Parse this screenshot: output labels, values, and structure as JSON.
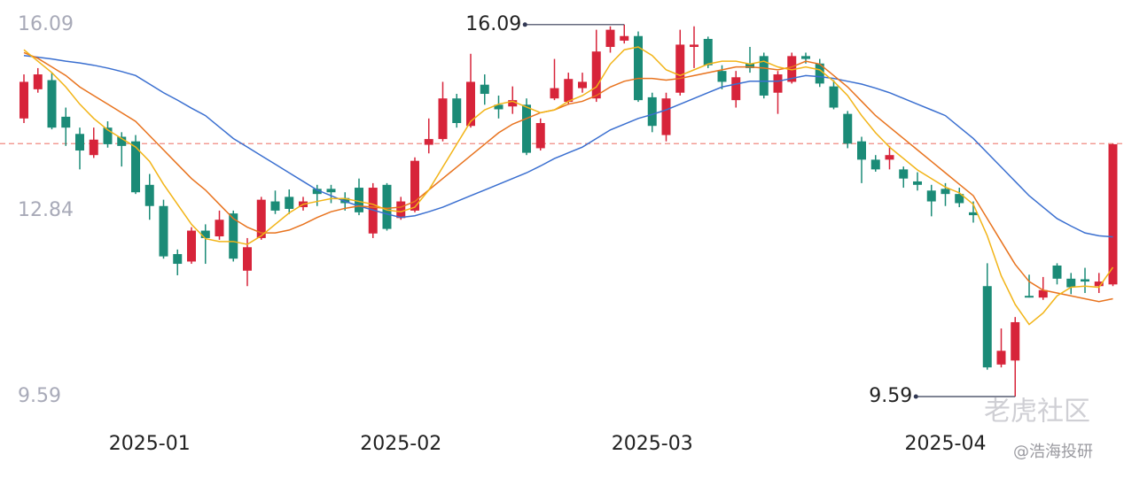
{
  "chart_data": {
    "type": "candlestick",
    "categories": [
      null,
      null,
      null,
      null,
      null,
      null,
      null,
      null,
      null,
      "2025-01",
      null,
      null,
      null,
      null,
      null,
      null,
      null,
      null,
      null,
      null,
      null,
      null,
      null,
      null,
      null,
      null,
      null,
      "2025-02",
      null,
      null,
      null,
      null,
      null,
      null,
      null,
      null,
      null,
      null,
      null,
      null,
      null,
      null,
      null,
      null,
      null,
      "2025-03",
      null,
      null,
      null,
      null,
      null,
      null,
      null,
      null,
      null,
      null,
      null,
      null,
      null,
      null,
      null,
      null,
      null,
      null,
      null,
      null,
      "2025-04",
      null,
      null,
      null,
      null,
      null,
      null,
      null,
      null,
      null,
      null,
      null,
      null
    ],
    "open": [
      14.45,
      14.96,
      15.12,
      14.48,
      14.18,
      13.81,
      14.29,
      14.13,
      14.05,
      13.29,
      12.92,
      12.08,
      11.95,
      12.49,
      12.39,
      12.79,
      11.79,
      12.36,
      13.0,
      13.08,
      12.9,
      13.22,
      13.22,
      13.06,
      13.24,
      12.44,
      13.29,
      12.71,
      12.84,
      13.99,
      14.09,
      14.8,
      14.32,
      15.04,
      14.69,
      14.66,
      14.69,
      13.93,
      14.8,
      14.74,
      14.98,
      14.8,
      15.7,
      15.81,
      15.89,
      14.82,
      14.16,
      14.9,
      15.7,
      15.84,
      15.28,
      14.77,
      15.41,
      15.54,
      14.9,
      15.09,
      15.54,
      15.41,
      15.01,
      14.53,
      14.05,
      13.73,
      13.73,
      13.56,
      13.35,
      13.19,
      13.22,
      13.13,
      12.81,
      11.52,
      10.15,
      10.22,
      11.35,
      11.32,
      11.88,
      11.65,
      11.64,
      11.52,
      11.55
    ],
    "high": [
      15.22,
      15.33,
      15.25,
      14.64,
      14.29,
      14.29,
      14.4,
      14.21,
      14.16,
      13.48,
      13.03,
      12.16,
      12.55,
      12.6,
      12.84,
      12.84,
      12.36,
      13.08,
      13.19,
      13.21,
      13.08,
      13.29,
      13.29,
      13.16,
      13.4,
      13.32,
      13.32,
      13.08,
      13.77,
      14.45,
      15.09,
      14.88,
      15.58,
      15.22,
      14.85,
      15.01,
      14.8,
      14.45,
      15.49,
      15.25,
      15.25,
      16.0,
      16.06,
      16.09,
      15.97,
      14.9,
      14.9,
      16.0,
      16.06,
      15.88,
      15.38,
      15.28,
      15.7,
      15.6,
      15.28,
      15.6,
      15.6,
      15.49,
      15.12,
      14.58,
      14.13,
      13.81,
      13.97,
      13.61,
      13.51,
      13.29,
      13.32,
      13.24,
      13.0,
      11.92,
      10.78,
      10.98,
      11.72,
      11.68,
      11.92,
      11.75,
      11.84,
      11.75,
      14.01
    ],
    "low": [
      14.37,
      14.9,
      14.26,
      13.97,
      13.56,
      13.76,
      13.94,
      13.61,
      13.13,
      12.68,
      12.0,
      11.71,
      11.91,
      11.91,
      12.33,
      11.95,
      11.52,
      12.33,
      12.78,
      12.78,
      12.84,
      12.92,
      12.97,
      12.84,
      12.76,
      12.36,
      12.49,
      12.68,
      12.81,
      13.84,
      14.05,
      14.29,
      14.29,
      14.69,
      14.45,
      14.53,
      13.81,
      13.89,
      14.77,
      14.69,
      14.9,
      14.74,
      15.6,
      15.76,
      14.74,
      14.21,
      14.05,
      14.85,
      15.33,
      15.33,
      14.96,
      14.64,
      15.25,
      14.8,
      14.53,
      15.06,
      15.41,
      15.0,
      14.61,
      13.93,
      13.32,
      13.52,
      13.56,
      13.24,
      13.19,
      12.74,
      12.92,
      12.9,
      12.63,
      10.06,
      10.1,
      9.59,
      11.32,
      11.28,
      11.55,
      11.38,
      11.4,
      11.4,
      11.52
    ],
    "close": [
      15.09,
      15.22,
      14.29,
      14.29,
      13.89,
      14.08,
      14.0,
      13.97,
      13.16,
      12.92,
      12.04,
      11.91,
      12.49,
      12.36,
      12.68,
      12.0,
      12.2,
      13.03,
      12.84,
      12.87,
      13.0,
      13.13,
      13.16,
      12.97,
      12.81,
      13.24,
      12.52,
      13.0,
      13.71,
      14.09,
      14.8,
      14.37,
      15.09,
      14.88,
      14.61,
      14.77,
      13.85,
      14.37,
      14.98,
      15.14,
      15.09,
      15.62,
      16.0,
      15.89,
      14.77,
      14.32,
      14.8,
      15.74,
      15.74,
      15.38,
      15.09,
      15.17,
      15.33,
      14.85,
      15.22,
      15.54,
      15.49,
      15.06,
      14.64,
      14.01,
      13.73,
      13.56,
      13.81,
      13.4,
      13.29,
      13.0,
      13.13,
      12.97,
      12.76,
      10.1,
      10.39,
      10.89,
      11.32,
      11.45,
      11.65,
      11.5,
      11.6,
      11.6,
      14.0
    ],
    "up_color": "#d7243a",
    "down_color": "#1b8b77",
    "series": [
      {
        "color": "#3a6fd0",
        "values": [
          15.55,
          15.52,
          15.49,
          15.45,
          15.42,
          15.38,
          15.33,
          15.27,
          15.2,
          15.05,
          14.9,
          14.77,
          14.63,
          14.5,
          14.3,
          14.1,
          13.95,
          13.8,
          13.65,
          13.5,
          13.35,
          13.2,
          13.1,
          13.0,
          12.92,
          12.85,
          12.78,
          12.72,
          12.75,
          12.82,
          12.9,
          13.0,
          13.1,
          13.2,
          13.3,
          13.4,
          13.5,
          13.62,
          13.75,
          13.85,
          13.95,
          14.1,
          14.25,
          14.35,
          14.45,
          14.52,
          14.6,
          14.7,
          14.8,
          14.9,
          15.0,
          15.05,
          15.1,
          15.1,
          15.1,
          15.15,
          15.2,
          15.18,
          15.15,
          15.1,
          15.05,
          14.98,
          14.9,
          14.8,
          14.7,
          14.6,
          14.5,
          14.3,
          14.1,
          13.85,
          13.6,
          13.35,
          13.1,
          12.9,
          12.7,
          12.57,
          12.45,
          12.4,
          12.38
        ]
      },
      {
        "color": "#e8731e",
        "values": [
          15.6,
          15.5,
          15.35,
          15.2,
          15.0,
          14.85,
          14.7,
          14.55,
          14.4,
          14.15,
          13.9,
          13.65,
          13.4,
          13.2,
          12.95,
          12.7,
          12.55,
          12.45,
          12.45,
          12.5,
          12.6,
          12.72,
          12.82,
          12.88,
          12.92,
          12.9,
          12.88,
          12.9,
          13.0,
          13.2,
          13.4,
          13.6,
          13.8,
          14.0,
          14.2,
          14.35,
          14.45,
          14.55,
          14.6,
          14.7,
          14.75,
          14.85,
          15.0,
          15.1,
          15.15,
          15.15,
          15.12,
          15.15,
          15.2,
          15.25,
          15.3,
          15.35,
          15.35,
          15.33,
          15.3,
          15.35,
          15.45,
          15.4,
          15.2,
          15.0,
          14.75,
          14.5,
          14.3,
          14.1,
          13.9,
          13.7,
          13.5,
          13.3,
          13.1,
          12.7,
          12.3,
          11.9,
          11.6,
          11.45,
          11.4,
          11.35,
          11.3,
          11.25,
          11.3
        ]
      },
      {
        "color": "#f2b417",
        "values": [
          15.65,
          15.45,
          15.25,
          15.0,
          14.7,
          14.45,
          14.25,
          14.1,
          13.95,
          13.7,
          13.3,
          12.95,
          12.6,
          12.35,
          12.3,
          12.3,
          12.25,
          12.4,
          12.6,
          12.8,
          12.95,
          13.0,
          13.05,
          13.05,
          13.0,
          12.95,
          12.85,
          12.82,
          12.9,
          13.2,
          13.6,
          14.0,
          14.4,
          14.6,
          14.7,
          14.75,
          14.65,
          14.55,
          14.6,
          14.75,
          14.85,
          15.0,
          15.4,
          15.65,
          15.7,
          15.55,
          15.3,
          15.2,
          15.3,
          15.4,
          15.45,
          15.45,
          15.4,
          15.45,
          15.35,
          15.3,
          15.35,
          15.3,
          15.1,
          14.85,
          14.5,
          14.2,
          13.95,
          13.75,
          13.55,
          13.4,
          13.25,
          13.15,
          12.95,
          12.4,
          11.7,
          11.2,
          10.85,
          11.05,
          11.35,
          11.5,
          11.52,
          11.5,
          11.85
        ]
      }
    ],
    "ref_line": 14.01,
    "ylim": [
      9.25,
      16.52
    ],
    "yticks": [
      9.59,
      12.84,
      16.09
    ],
    "annotations": [
      {
        "index": 43,
        "value": 16.09
      },
      {
        "index": 71,
        "value": 9.59
      }
    ],
    "watermarks": [
      "老虎社区",
      "@浩海投研"
    ]
  }
}
